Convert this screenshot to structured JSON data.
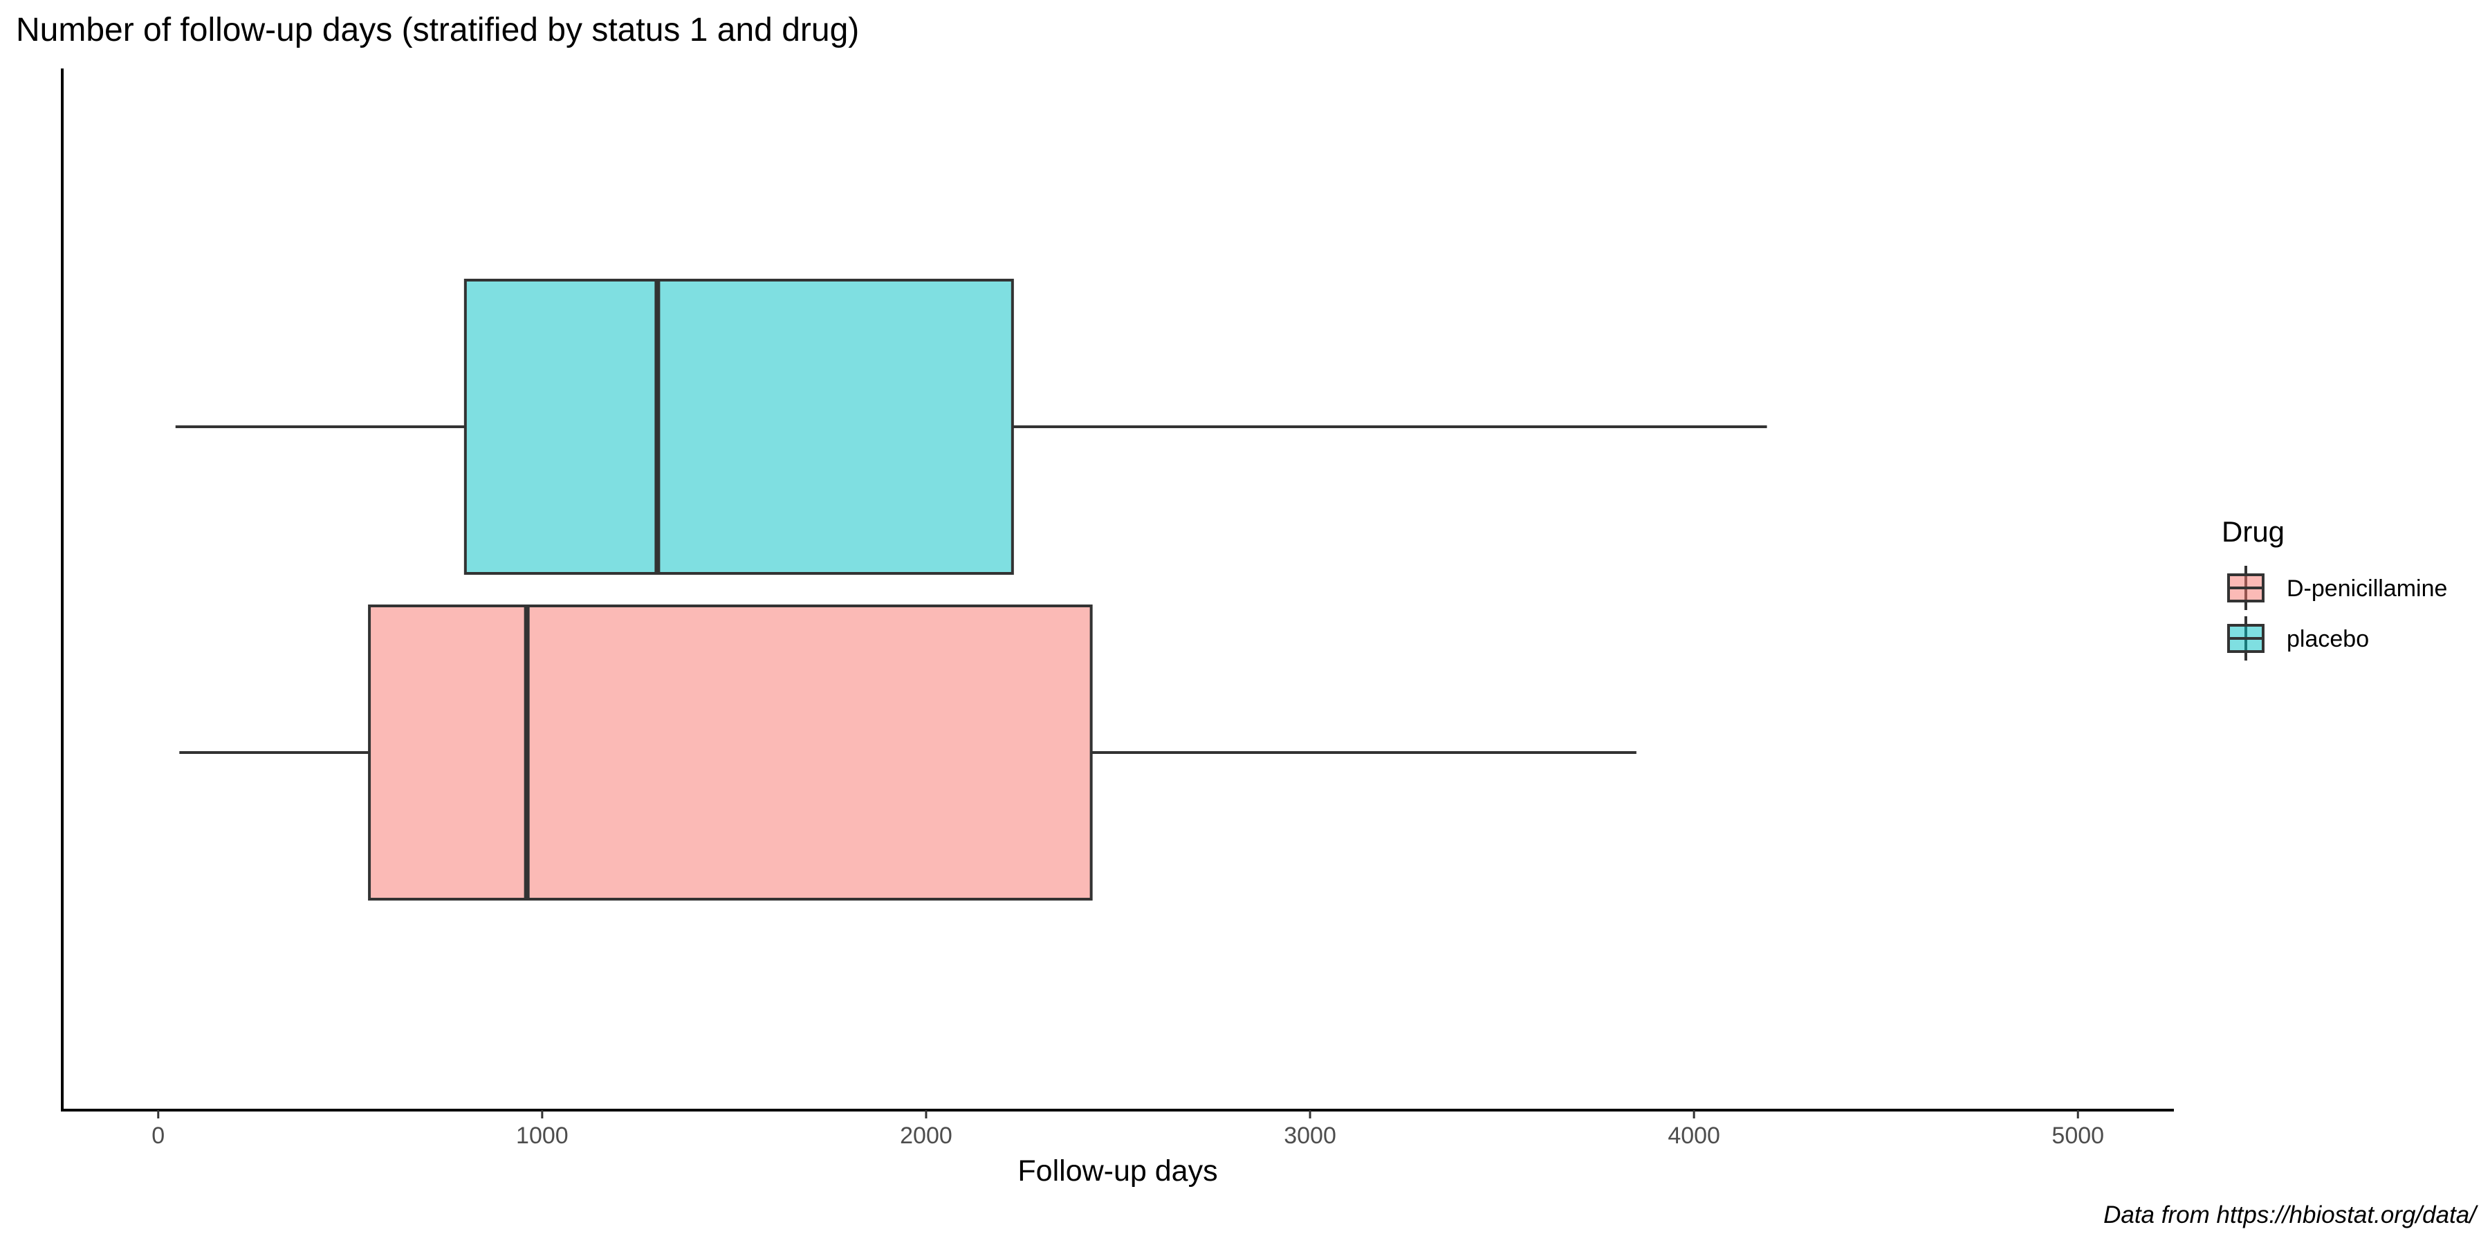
{
  "chart_data": {
    "type": "boxplot",
    "orientation": "horizontal",
    "title": "Number of follow-up days (stratified by status 1 and drug)",
    "xlabel": "Follow-up days",
    "ylabel": "",
    "xlim": [
      -250,
      5250
    ],
    "x_ticks": [
      0,
      1000,
      2000,
      3000,
      4000,
      5000
    ],
    "grid": false,
    "legend": {
      "title": "Drug",
      "position": "right",
      "entries": [
        "D-penicillamine",
        "placebo"
      ]
    },
    "series": [
      {
        "name": "D-penicillamine",
        "color": "#F8766D",
        "fill_opacity": 0.5,
        "whisker_low": 55,
        "q1": 550,
        "median": 960,
        "q3": 2430,
        "whisker_high": 3850
      },
      {
        "name": "placebo",
        "color": "#00BFC4",
        "fill_opacity": 0.5,
        "whisker_low": 45,
        "q1": 800,
        "median": 1300,
        "q3": 2225,
        "whisker_high": 4190
      }
    ],
    "caption": "Data from https://hbiostat.org/data/"
  }
}
